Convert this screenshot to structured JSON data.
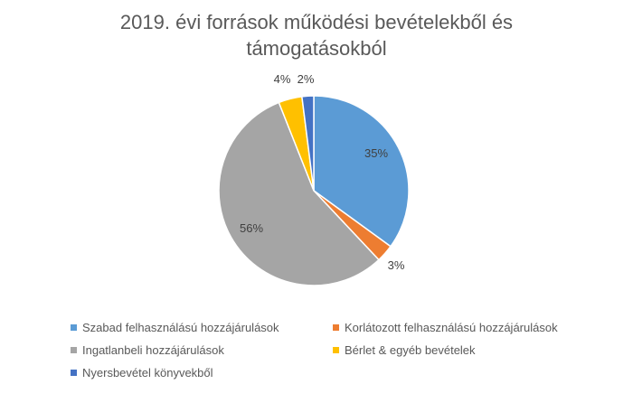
{
  "chart_data": {
    "type": "pie",
    "title_lines": [
      "2019. évi források működési bevételekből és",
      "támogatásokból"
    ],
    "slices": [
      {
        "name": "Szabad felhasználású hozzájárulások",
        "value": 35,
        "label": "35%",
        "color": "#5B9BD5"
      },
      {
        "name": "Korlátozott felhasználású hozzájárulások",
        "value": 3,
        "label": "3%",
        "color": "#ED7D31"
      },
      {
        "name": "Ingatlanbeli hozzájárulások",
        "value": 56,
        "label": "56%",
        "color": "#A5A5A5"
      },
      {
        "name": "Bérlet & egyéb bevételek",
        "value": 4,
        "label": "4%",
        "color": "#FFC000"
      },
      {
        "name": "Nyersbevétel könyvekből",
        "value": 2,
        "label": "2%",
        "color": "#4472C4"
      }
    ],
    "legend_position": "bottom"
  }
}
